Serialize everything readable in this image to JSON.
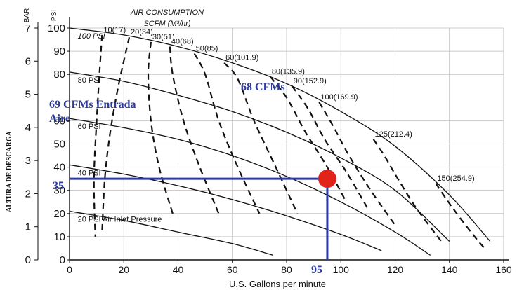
{
  "chart_data": {
    "type": "line",
    "title": "AIR CONSUMPTION",
    "subtitle": "SCFM (M³/hr)",
    "xlabel": "U.S. Gallons per minute",
    "ylabel_bar": "BAR",
    "ylabel_psi": "PSI",
    "ylabel_descarga": "ALTURA DE DESCARGA",
    "xlim": [
      0,
      160
    ],
    "ylim_psi": [
      0,
      100
    ],
    "ylim_bar": [
      0,
      7
    ],
    "x_ticks": [
      "0",
      "20",
      "40",
      "60",
      "80",
      "100",
      "120",
      "140",
      "160"
    ],
    "psi_ticks": [
      "0",
      "10",
      "20",
      "30",
      "35",
      "40",
      "50",
      "60",
      "80",
      "90",
      "100"
    ],
    "bar_ticks": [
      "0",
      "1",
      "2",
      "3",
      "4",
      "5",
      "6",
      "7"
    ],
    "grid": true,
    "pressure_series": [
      {
        "name": "100 PSI",
        "x": [
          0,
          20,
          40,
          60,
          80,
          100,
          120,
          140,
          155
        ],
        "y": [
          100,
          97,
          92,
          85,
          76,
          64,
          49,
          28,
          8
        ]
      },
      {
        "name": "80 PSI",
        "x": [
          0,
          20,
          40,
          60,
          80,
          100,
          120,
          140
        ],
        "y": [
          81,
          77,
          71,
          64,
          55,
          44,
          30,
          8
        ]
      },
      {
        "name": "60 PSI",
        "x": [
          0,
          20,
          40,
          60,
          80,
          100,
          120,
          133
        ],
        "y": [
          61,
          57,
          52,
          45,
          36,
          25,
          12,
          2
        ]
      },
      {
        "name": "40 PSI",
        "x": [
          0,
          20,
          40,
          60,
          80,
          100,
          115
        ],
        "y": [
          41,
          37,
          32,
          26,
          19,
          11,
          4
        ]
      },
      {
        "name": "20 PSI Air Inlet Pressure",
        "x": [
          0,
          20,
          40,
          60,
          75
        ],
        "y": [
          21,
          17,
          12,
          7,
          2
        ]
      }
    ],
    "air_consumption_curves": [
      {
        "name": "10(17)",
        "x": [
          12,
          11,
          10,
          9,
          9.5
        ],
        "y": [
          97,
          80,
          60,
          35,
          10
        ]
      },
      {
        "name": "20(34)",
        "x": [
          22,
          18,
          15,
          13,
          12
        ],
        "y": [
          96,
          75,
          55,
          35,
          12
        ]
      },
      {
        "name": "30(51)",
        "x": [
          30,
          29,
          30,
          33,
          38
        ],
        "y": [
          94,
          80,
          60,
          40,
          20
        ]
      },
      {
        "name": "40(68)",
        "x": [
          37,
          38,
          42,
          48,
          55
        ],
        "y": [
          92,
          80,
          60,
          40,
          20
        ]
      },
      {
        "name": "50(85)",
        "x": [
          46,
          50,
          55,
          62,
          70
        ],
        "y": [
          89,
          80,
          60,
          40,
          20
        ]
      },
      {
        "name": "60(101.9)",
        "x": [
          57,
          62,
          68,
          76,
          84
        ],
        "y": [
          85,
          78,
          60,
          40,
          20
        ]
      },
      {
        "name": "80(135.9)",
        "x": [
          74,
          80,
          87,
          95,
          102
        ],
        "y": [
          79,
          70,
          55,
          40,
          25
        ]
      },
      {
        "name": "90(152.9)",
        "x": [
          82,
          88,
          94,
          102,
          110
        ],
        "y": [
          75,
          65,
          52,
          38,
          22
        ]
      },
      {
        "name": "100(169.9)",
        "x": [
          92,
          97,
          103,
          111,
          120
        ],
        "y": [
          68,
          58,
          45,
          30,
          15
        ]
      },
      {
        "name": "125(212.4)",
        "x": [
          112,
          116,
          121,
          128,
          137
        ],
        "y": [
          52,
          45,
          35,
          22,
          8
        ]
      },
      {
        "name": "150(254.9)",
        "x": [
          135,
          139,
          144,
          150,
          153
        ],
        "y": [
          33,
          26,
          18,
          9,
          5
        ]
      }
    ],
    "annotations": {
      "label_68": "68 CFMs",
      "label_69_line1": "69 CFMs Entrada",
      "label_69_line2": "Aire",
      "operating_psi": "35",
      "operating_gpm": "95",
      "color": "#2b3a9e",
      "marker_color": "#e2231a"
    },
    "operating_point": {
      "x": 95,
      "y": 35
    }
  }
}
